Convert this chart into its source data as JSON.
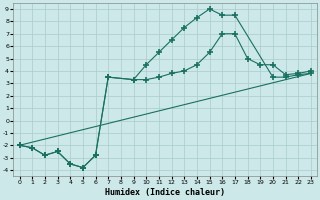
{
  "xlabel": "Humidex (Indice chaleur)",
  "background_color": "#cce8e8",
  "grid_color": "#aacccc",
  "line_color": "#1a7060",
  "xlim": [
    -0.5,
    23.5
  ],
  "ylim": [
    -4.5,
    9.5
  ],
  "xticks": [
    0,
    1,
    2,
    3,
    4,
    5,
    6,
    7,
    8,
    9,
    10,
    11,
    12,
    13,
    14,
    15,
    16,
    17,
    18,
    19,
    20,
    21,
    22,
    23
  ],
  "yticks": [
    -4,
    -3,
    -2,
    -1,
    0,
    1,
    2,
    3,
    4,
    5,
    6,
    7,
    8,
    9
  ],
  "line_top": {
    "x": [
      0,
      1,
      2,
      3,
      4,
      5,
      6,
      7,
      9,
      10,
      11,
      12,
      13,
      14,
      15,
      16,
      17,
      20,
      21,
      22,
      23
    ],
    "y": [
      -2,
      -2.2,
      -2.8,
      -2.5,
      -3.5,
      -3.8,
      -2.8,
      3.5,
      3.3,
      4.5,
      5.5,
      6.5,
      7.5,
      8.3,
      9.0,
      8.5,
      8.5,
      3.5,
      3.5,
      3.7,
      3.8
    ]
  },
  "line_mid": {
    "x": [
      0,
      1,
      2,
      3,
      4,
      5,
      6,
      7,
      9,
      10,
      11,
      12,
      13,
      14,
      15,
      16,
      17,
      18,
      19,
      20,
      21,
      22,
      23
    ],
    "y": [
      -2,
      -2.2,
      -2.8,
      -2.5,
      -3.5,
      -3.8,
      -2.8,
      3.5,
      3.3,
      3.3,
      3.5,
      3.8,
      4.0,
      4.5,
      5.5,
      7.0,
      7.0,
      5.0,
      4.5,
      4.5,
      3.7,
      3.8,
      4.0
    ]
  },
  "line_diag": {
    "x": [
      0,
      23
    ],
    "y": [
      -2,
      3.8
    ]
  }
}
